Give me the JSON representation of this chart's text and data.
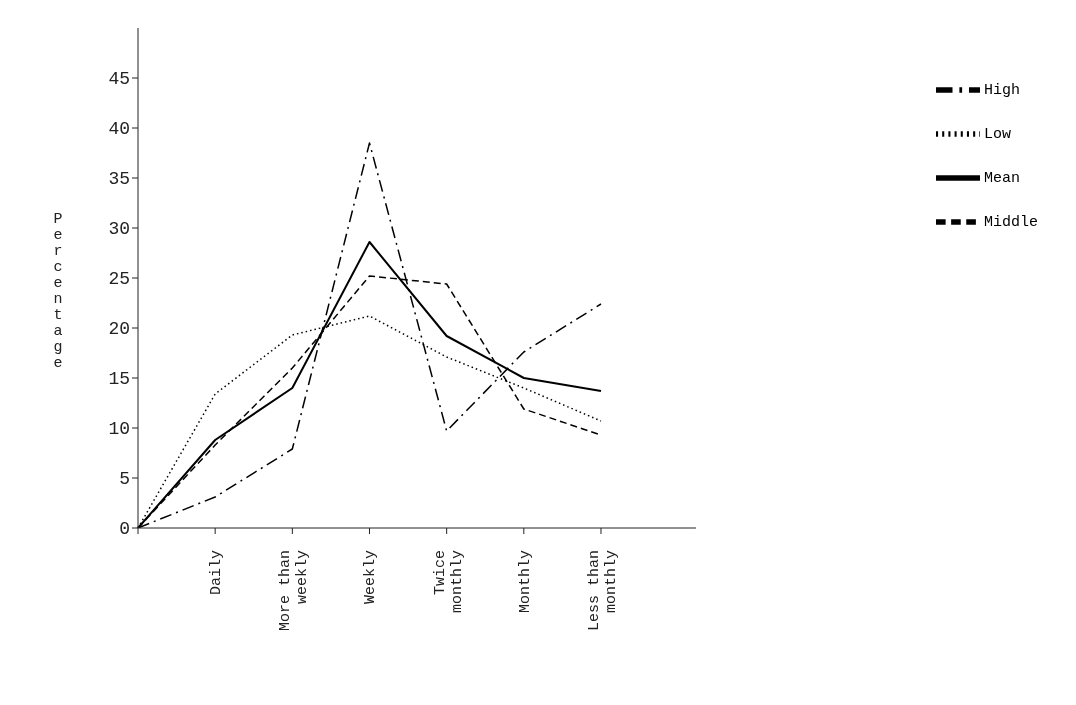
{
  "chart_data": {
    "type": "line",
    "ylabel": "Percentage",
    "categories": [
      null,
      "Daily",
      "More than weekly",
      "Weekly",
      "Twice monthly",
      "Monthly",
      "Less than monthly"
    ],
    "series": [
      {
        "name": "Low",
        "color": "#000000",
        "line_style": "dotted",
        "values": [
          0,
          13.4,
          19.3,
          21.2,
          17.1,
          14.0,
          10.7
        ]
      },
      {
        "name": "Middle",
        "color": "#000000",
        "line_style": "dashed",
        "values": [
          0,
          8.3,
          16,
          25.2,
          24.4,
          11.9,
          9.3
        ]
      },
      {
        "name": "High",
        "color": "#000000",
        "line_style": "dashdot",
        "values": [
          0,
          3.1,
          7.9,
          38.5,
          9.7,
          17.6,
          22.4
        ]
      },
      {
        "name": "Mean",
        "color": "#000000",
        "line_style": "solid",
        "values": [
          0,
          8.8,
          14,
          28.6,
          19.2,
          15.0,
          13.7
        ]
      }
    ],
    "ylim": [
      0,
      50
    ],
    "yticks": [
      0,
      5,
      10,
      15,
      20,
      25,
      30,
      35,
      40,
      45
    ],
    "grid": false,
    "legend": "top right",
    "marker": "none"
  }
}
